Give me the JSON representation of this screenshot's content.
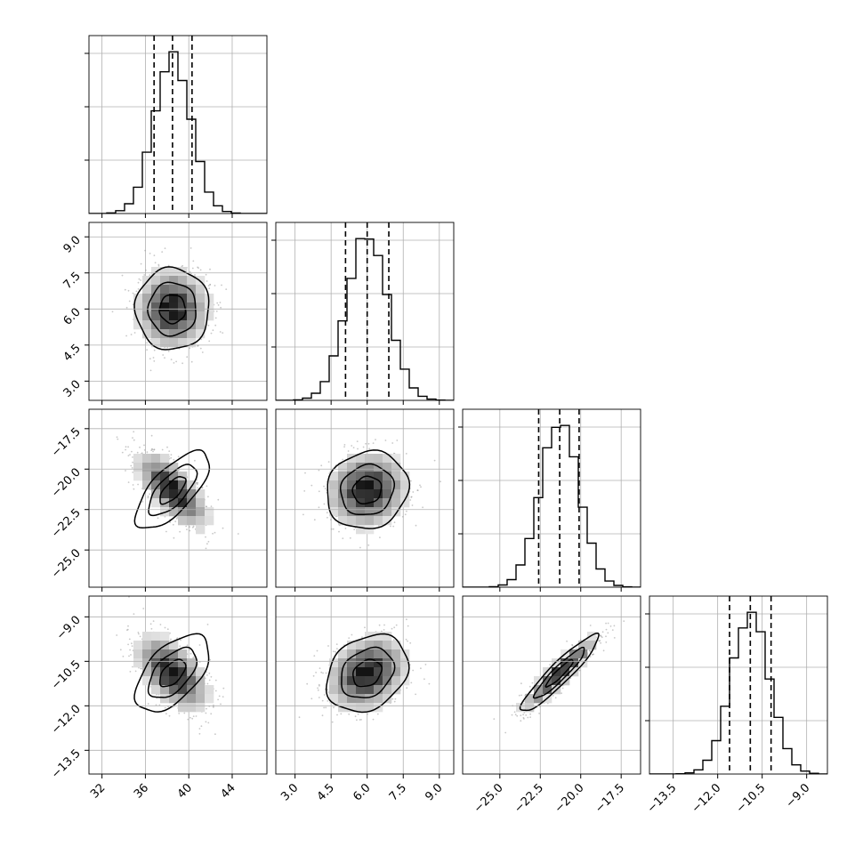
{
  "chart_data": {
    "type": "corner",
    "parameters": [
      {
        "label": "",
        "mean": 38.5,
        "sd": 1.7,
        "range": [
          30.8,
          47.2
        ],
        "quantiles": [
          36.8,
          38.5,
          40.3
        ],
        "ticks": [
          "32",
          "36",
          "40",
          "44"
        ],
        "tick_values": [
          32,
          36,
          40,
          44
        ]
      },
      {
        "label": "",
        "mean": 6.0,
        "sd": 0.85,
        "range": [
          2.2,
          9.6
        ],
        "quantiles": [
          5.1,
          6.0,
          6.9
        ],
        "ticks": [
          "3.0",
          "4.5",
          "6.0",
          "7.5",
          "9.0"
        ],
        "tick_values": [
          3.0,
          4.5,
          6.0,
          7.5,
          9.0
        ]
      },
      {
        "label": "",
        "mean": -21.3,
        "sd": 1.2,
        "range": [
          -27.3,
          -16.3
        ],
        "quantiles": [
          -22.6,
          -21.3,
          -20.1
        ],
        "ticks": [
          "-25.0",
          "-22.5",
          "-20.0",
          "-17.5"
        ],
        "tick_values": [
          -25.0,
          -22.5,
          -20.0,
          -17.5
        ]
      },
      {
        "label": "",
        "mean": -10.9,
        "sd": 0.65,
        "range": [
          -14.3,
          -8.3
        ],
        "quantiles": [
          -11.6,
          -10.9,
          -10.2
        ],
        "ticks": [
          "-13.5",
          "-12.0",
          "-10.5",
          "-9.0"
        ],
        "tick_values": [
          -13.5,
          -12.0,
          -10.5,
          -9.0
        ]
      }
    ],
    "correlations": [
      [
        1.0,
        0.0,
        -0.7,
        -0.55
      ],
      [
        0.0,
        1.0,
        0.1,
        0.25
      ],
      [
        -0.7,
        0.1,
        1.0,
        0.93
      ],
      [
        -0.55,
        0.25,
        0.93,
        1.0
      ]
    ],
    "grid": true,
    "quantile_lines": "dashed",
    "colors": {
      "points": "#9a9a9a",
      "contour": "#000000",
      "density_dark": "#000000",
      "grid": "#b0b0b0"
    }
  }
}
